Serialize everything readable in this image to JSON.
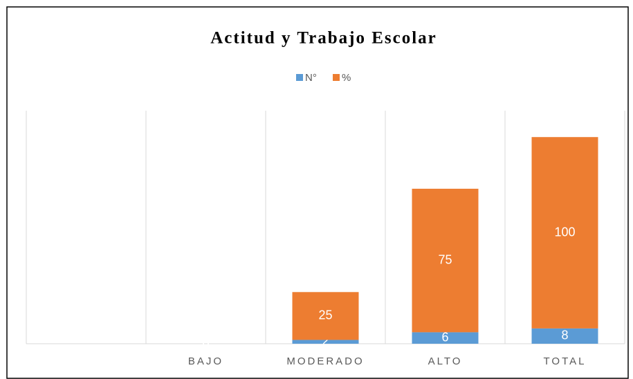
{
  "chart_data": {
    "type": "stacked_bar",
    "title": "Actitud y Trabajo Escolar",
    "categories": [
      null,
      "BAJO",
      "MODERADO",
      "ALTO",
      "TOTAL"
    ],
    "series": [
      {
        "name": "N°",
        "color": "#5b9bd5",
        "values": [
          null,
          0,
          2,
          6,
          8
        ]
      },
      {
        "name": "%",
        "color": "#ed7d31",
        "values": [
          null,
          0,
          25,
          75,
          100
        ]
      }
    ],
    "ylim": [
      0,
      120
    ],
    "legend": "top"
  }
}
